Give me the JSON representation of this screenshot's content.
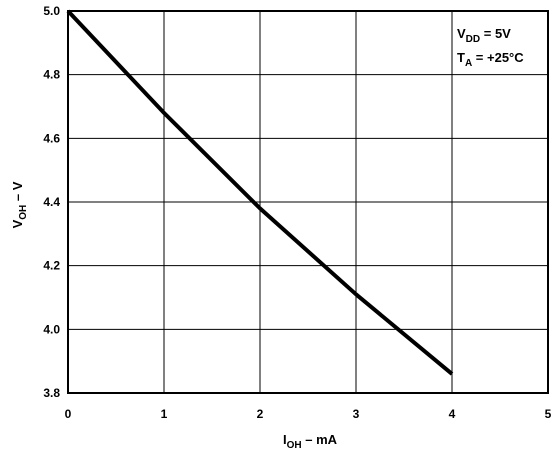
{
  "chart_data": {
    "type": "line",
    "title": "",
    "xlabel": {
      "main": "I",
      "sub": "OH",
      "rest": " – mA"
    },
    "ylabel": {
      "main": "V",
      "sub": "OH",
      "rest": " – V"
    },
    "xlim": [
      0,
      5
    ],
    "ylim": [
      3.8,
      5.0
    ],
    "x_ticks": [
      0,
      1,
      2,
      3,
      4,
      5
    ],
    "x_tick_labels": [
      "0",
      "1",
      "2",
      "3",
      "4",
      "5"
    ],
    "y_ticks": [
      3.8,
      4.0,
      4.2,
      4.4,
      4.6,
      4.8,
      5.0
    ],
    "y_tick_labels": [
      "3.8",
      "4.0",
      "4.2",
      "4.4",
      "4.6",
      "4.8",
      "5.0"
    ],
    "grid": true,
    "series": [
      {
        "x": [
          0,
          1,
          2,
          3,
          4
        ],
        "y": [
          5.0,
          4.68,
          4.38,
          4.11,
          3.86
        ]
      }
    ],
    "annotations": {
      "line1": {
        "main": "V",
        "sub": "DD",
        "rest": " = 5V"
      },
      "line2": {
        "main": "T",
        "sub": "A",
        "rest": " = +25°C"
      }
    }
  }
}
